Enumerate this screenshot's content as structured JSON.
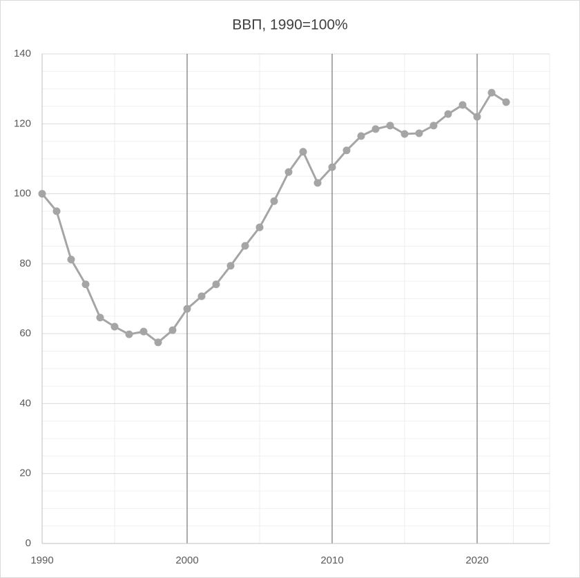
{
  "chart_data": {
    "type": "line",
    "title": "ВВП, 1990=100%",
    "x": [
      1990,
      1991,
      1992,
      1993,
      1994,
      1995,
      1996,
      1997,
      1998,
      1999,
      2000,
      2001,
      2002,
      2003,
      2004,
      2005,
      2006,
      2007,
      2008,
      2009,
      2010,
      2011,
      2012,
      2013,
      2014,
      2015,
      2016,
      2017,
      2018,
      2019,
      2020,
      2021,
      2022
    ],
    "values": [
      100,
      95.0,
      81.2,
      74.1,
      64.6,
      62.0,
      59.8,
      60.6,
      57.5,
      61.0,
      67.1,
      70.7,
      74.1,
      79.4,
      85.1,
      90.4,
      97.9,
      106.2,
      112.0,
      103.1,
      107.6,
      112.4,
      116.5,
      118.5,
      119.5,
      117.1,
      117.3,
      119.5,
      122.8,
      125.4,
      122.0,
      128.9,
      126.2
    ],
    "color": "#a5a5a5",
    "xlim": [
      1990,
      2025
    ],
    "xticks": [
      1990,
      2000,
      2010,
      2020
    ],
    "ylim": [
      0,
      140
    ],
    "yticks": [
      0,
      20,
      40,
      60,
      80,
      100,
      120,
      140
    ],
    "grid": true,
    "markers": true
  }
}
